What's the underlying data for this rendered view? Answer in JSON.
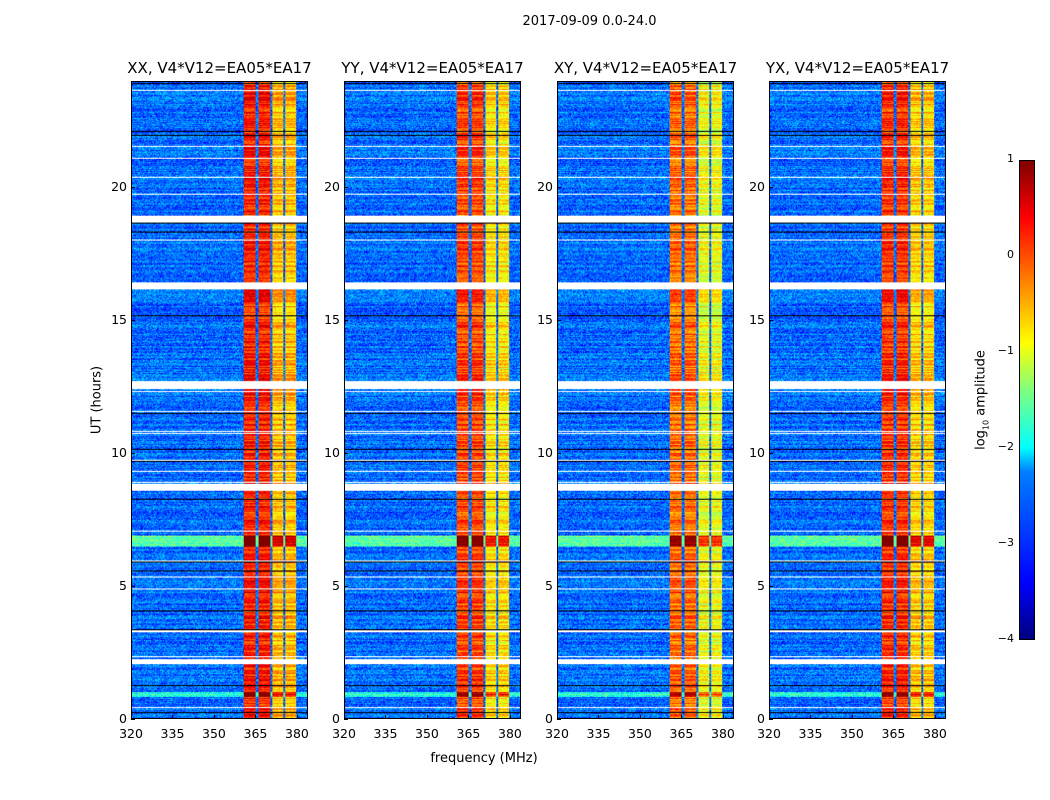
{
  "chart_data": {
    "type": "heatmap",
    "title": "2017-09-09 0.0-24.0",
    "xlabel": "frequency (MHz)",
    "ylabel": "UT (hours)",
    "xlim": [
      320,
      384
    ],
    "ylim": [
      0,
      24
    ],
    "xticks": [
      320,
      335,
      350,
      365,
      380
    ],
    "yticks": [
      0,
      5,
      10,
      15,
      20
    ],
    "panels": [
      {
        "title": "XX, V4*V12=EA05*EA17",
        "band_level": -0.4
      },
      {
        "title": "YY, V4*V12=EA05*EA17",
        "band_level": -0.6
      },
      {
        "title": "XY, V4*V12=EA05*EA17",
        "band_level": -0.8
      },
      {
        "title": "YX, V4*V12=EA05*EA17",
        "band_level": -0.5
      }
    ],
    "bright_bands_mhz": [
      [
        360.5,
        365
      ],
      [
        366,
        370.3
      ],
      [
        371,
        375
      ],
      [
        375.8,
        380
      ]
    ],
    "flagged_hours": [
      [
        2.05,
        2.25
      ],
      [
        8.6,
        8.85
      ],
      [
        12.45,
        12.75
      ],
      [
        16.2,
        16.45
      ],
      [
        18.7,
        18.95
      ]
    ],
    "colorbar": {
      "label": "log10 amplitude",
      "label_base": "log",
      "label_sub": "10",
      "label_rest": " amplitude",
      "range": [
        -4,
        1
      ],
      "ticks": [
        "1",
        "0",
        "−1",
        "−2",
        "−3",
        "−4"
      ],
      "colormap": "jet"
    }
  }
}
